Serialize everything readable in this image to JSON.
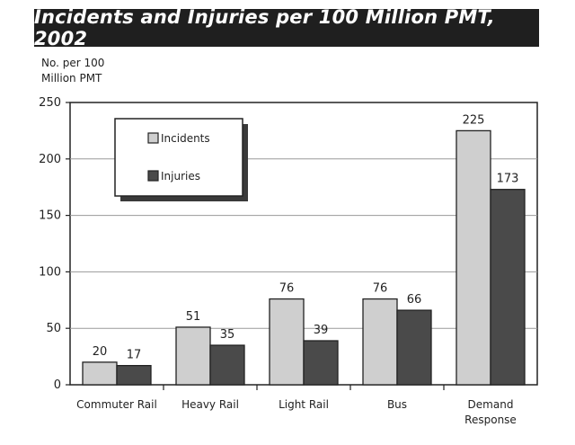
{
  "chart_data": {
    "type": "bar",
    "title": "Incidents and Injuries per 100 Million PMT, 2002",
    "ylabel": "No. per 100\nMillion PMT",
    "xlabel": "",
    "ylim": [
      0,
      250
    ],
    "yticks": [
      "0",
      "50",
      "100",
      "150",
      "200",
      "250"
    ],
    "categories": [
      "Commuter Rail",
      "Heavy Rail",
      "Light Rail",
      "Bus",
      "Demand\nResponse"
    ],
    "series": [
      {
        "name": "Incidents",
        "values": [
          20,
          51,
          76,
          76,
          225
        ],
        "color": "#cfcfcf"
      },
      {
        "name": "Injuries",
        "values": [
          17,
          35,
          39,
          66,
          173
        ],
        "color": "#4a4a4a"
      }
    ],
    "grid": true,
    "legend": "top-left"
  }
}
